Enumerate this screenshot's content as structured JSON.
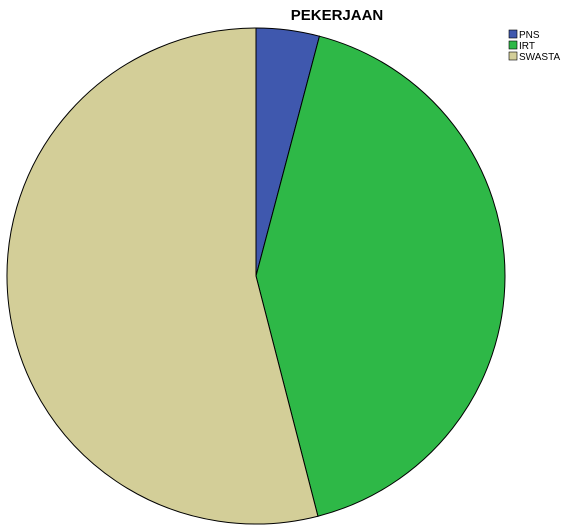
{
  "chart_data": {
    "type": "pie",
    "title": "PEKERJAAN",
    "slices": [
      {
        "label": "PNS",
        "value": 4.1,
        "color": "#3F58AE"
      },
      {
        "label": "IRT",
        "value": 41.9,
        "color": "#2EB847"
      },
      {
        "label": "SWASTA",
        "value": 54.0,
        "color": "#D3CE98"
      }
    ],
    "start": "top",
    "direction": "clockwise",
    "legend_position": "top-right"
  }
}
